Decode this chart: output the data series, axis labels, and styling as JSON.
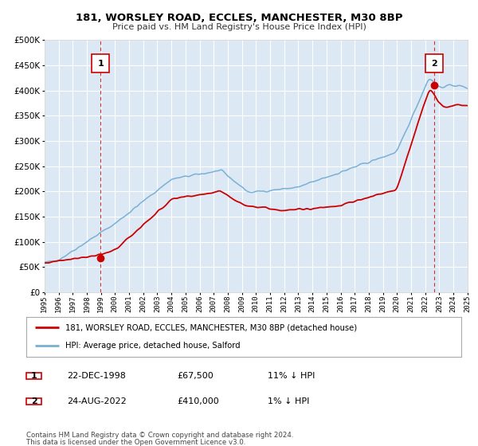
{
  "title": "181, WORSLEY ROAD, ECCLES, MANCHESTER, M30 8BP",
  "subtitle": "Price paid vs. HM Land Registry's House Price Index (HPI)",
  "legend_line1": "181, WORSLEY ROAD, ECCLES, MANCHESTER, M30 8BP (detached house)",
  "legend_line2": "HPI: Average price, detached house, Salford",
  "annotation1_label": "1",
  "annotation1_date": "22-DEC-1998",
  "annotation1_price": "£67,500",
  "annotation1_hpi": "11% ↓ HPI",
  "annotation2_label": "2",
  "annotation2_date": "24-AUG-2022",
  "annotation2_price": "£410,000",
  "annotation2_hpi": "1% ↓ HPI",
  "footnote1": "Contains HM Land Registry data © Crown copyright and database right 2024.",
  "footnote2": "This data is licensed under the Open Government Licence v3.0.",
  "red_color": "#cc0000",
  "blue_color": "#7ab0d4",
  "plot_bg_color": "#dce9f5",
  "grid_color": "#ffffff",
  "ylim": [
    0,
    500000
  ],
  "yticks": [
    0,
    50000,
    100000,
    150000,
    200000,
    250000,
    300000,
    350000,
    400000,
    450000,
    500000
  ],
  "sale1_year": 1998.97,
  "sale1_value": 67500,
  "sale2_year": 2022.64,
  "sale2_value": 410000,
  "xmin": 1995,
  "xmax": 2025
}
